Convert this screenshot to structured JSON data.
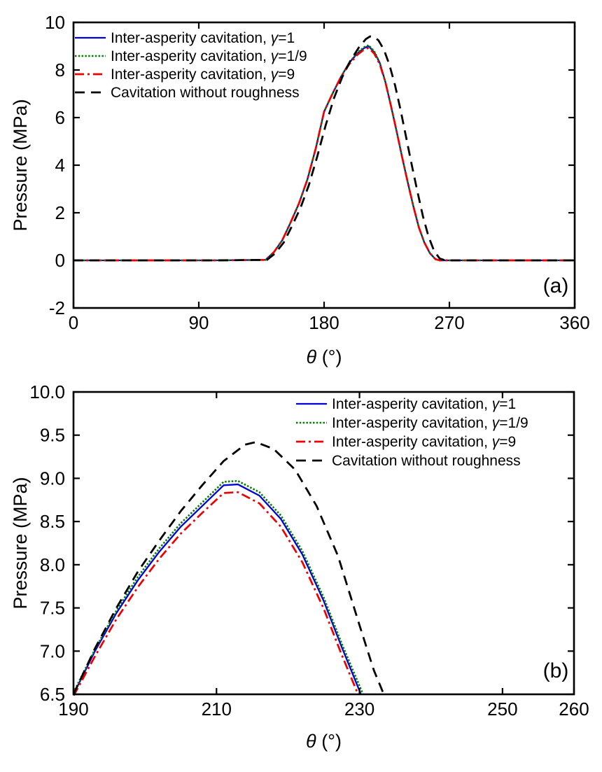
{
  "figure": {
    "background": "#ffffff",
    "description": "Two stacked line charts of hydrodynamic pressure versus bearing angle theta"
  },
  "chart_data": [
    {
      "id": "panel-a",
      "type": "line",
      "panel_label": "(a)",
      "xlabel": "θ (°)",
      "ylabel": "Pressure (MPa)",
      "xlim": [
        0,
        360
      ],
      "ylim": [
        -2,
        10
      ],
      "xticks": [
        0,
        90,
        180,
        270,
        360
      ],
      "xtick_labels": [
        "0",
        "90",
        "180",
        "270",
        "360"
      ],
      "yticks": [
        10,
        8,
        6,
        4,
        2,
        0,
        -2
      ],
      "ytick_labels": [
        "10",
        "8",
        "6",
        "4",
        "2",
        "0",
        "-2"
      ],
      "grid": false,
      "legend_position": "top-left",
      "series": [
        {
          "name": "Inter-asperity cavitation, γ=1",
          "color": "#0000dd",
          "style": "solid",
          "x": [
            0,
            100,
            138,
            144,
            150,
            156,
            162,
            168,
            174,
            180,
            186,
            192,
            198,
            204,
            209,
            212,
            216,
            220,
            224,
            228,
            232,
            236,
            240,
            244,
            248,
            252,
            256,
            260,
            263,
            280,
            360
          ],
          "y": [
            0,
            0,
            0.02,
            0.35,
            0.85,
            1.6,
            2.4,
            3.4,
            4.7,
            6.25,
            7.0,
            7.7,
            8.3,
            8.7,
            8.93,
            9.0,
            8.75,
            8.3,
            7.5,
            6.5,
            5.45,
            4.35,
            3.3,
            2.3,
            1.4,
            0.75,
            0.3,
            0.05,
            0,
            0,
            0
          ]
        },
        {
          "name": "Inter-asperity cavitation, γ=1/9",
          "color": "#007f00",
          "style": "dotted",
          "x": [
            0,
            100,
            138,
            144,
            150,
            156,
            162,
            168,
            174,
            180,
            186,
            192,
            198,
            204,
            209,
            212,
            216,
            220,
            224,
            228,
            232,
            236,
            240,
            244,
            248,
            252,
            256,
            260,
            263,
            280,
            360
          ],
          "y": [
            0,
            0,
            0.02,
            0.35,
            0.85,
            1.6,
            2.4,
            3.4,
            4.7,
            6.25,
            7.0,
            7.7,
            8.3,
            8.74,
            8.97,
            9.04,
            8.79,
            8.3,
            7.5,
            6.5,
            5.45,
            4.35,
            3.3,
            2.3,
            1.4,
            0.75,
            0.3,
            0.05,
            0,
            0,
            0
          ]
        },
        {
          "name": "Inter-asperity cavitation, γ=9",
          "color": "#ee0000",
          "style": "dashdot",
          "x": [
            0,
            100,
            138,
            144,
            150,
            156,
            162,
            168,
            174,
            180,
            186,
            192,
            198,
            204,
            209,
            212,
            216,
            220,
            224,
            228,
            232,
            236,
            240,
            244,
            248,
            252,
            256,
            260,
            263,
            280,
            360
          ],
          "y": [
            0,
            0,
            0.02,
            0.35,
            0.85,
            1.6,
            2.4,
            3.4,
            4.7,
            6.25,
            7.0,
            7.7,
            8.24,
            8.64,
            8.87,
            8.93,
            8.69,
            8.24,
            7.5,
            6.5,
            5.45,
            4.35,
            3.3,
            2.3,
            1.4,
            0.75,
            0.3,
            0.05,
            0,
            0,
            0
          ]
        },
        {
          "name": "Cavitation without roughness",
          "color": "#000000",
          "style": "dashed",
          "x": [
            0,
            100,
            139,
            145,
            151,
            157,
            163,
            169,
            175,
            181,
            187,
            193,
            199,
            205,
            210,
            213,
            216,
            219,
            223,
            227,
            231,
            235,
            239,
            243,
            247,
            251,
            255,
            259,
            263,
            267,
            280,
            360
          ],
          "y": [
            0,
            0,
            0.02,
            0.3,
            0.75,
            1.45,
            2.2,
            3.15,
            4.35,
            5.65,
            6.8,
            7.7,
            8.4,
            8.95,
            9.3,
            9.41,
            9.38,
            9.25,
            8.85,
            8.2,
            7.35,
            6.3,
            5.15,
            4.0,
            2.9,
            1.85,
            1.0,
            0.4,
            0.08,
            0,
            0,
            0
          ]
        }
      ]
    },
    {
      "id": "panel-b",
      "type": "line",
      "panel_label": "(b)",
      "xlabel": "θ (°)",
      "ylabel": "Pressure (MPa)",
      "xlim": [
        190,
        260
      ],
      "ylim": [
        6.5,
        10.0
      ],
      "xticks": [
        190,
        210,
        230,
        250,
        260
      ],
      "xtick_labels": [
        "190",
        "210",
        "230",
        "250",
        "260"
      ],
      "yticks": [
        10.0,
        9.5,
        9.0,
        8.5,
        8.0,
        7.5,
        7.0,
        6.5
      ],
      "ytick_labels": [
        "10.0",
        "9.5",
        "9.0",
        "8.5",
        "8.0",
        "7.5",
        "7.0",
        "6.5"
      ],
      "grid": false,
      "legend_position": "top-right",
      "series": [
        {
          "name": "Inter-asperity cavitation, γ=1",
          "color": "#0000dd",
          "style": "solid",
          "x": [
            190,
            193,
            196,
            199,
            202,
            205,
            208,
            211,
            213,
            216,
            219,
            222,
            225,
            227.5,
            230.2
          ],
          "y": [
            6.5,
            7.0,
            7.44,
            7.82,
            8.15,
            8.44,
            8.68,
            8.92,
            8.93,
            8.8,
            8.53,
            8.12,
            7.58,
            7.05,
            6.5
          ]
        },
        {
          "name": "Inter-asperity cavitation, γ=1/9",
          "color": "#007f00",
          "style": "dotted",
          "x": [
            190,
            193,
            196,
            199,
            202,
            205,
            208,
            211,
            213,
            216,
            219,
            222,
            225,
            227.5,
            230.5
          ],
          "y": [
            6.52,
            7.02,
            7.47,
            7.86,
            8.19,
            8.48,
            8.72,
            8.96,
            8.97,
            8.84,
            8.57,
            8.16,
            7.62,
            7.09,
            6.5
          ]
        },
        {
          "name": "Inter-asperity cavitation, γ=9",
          "color": "#ee0000",
          "style": "dashdot",
          "x": [
            190,
            193,
            196,
            199,
            202,
            205,
            208,
            211,
            213,
            216,
            219,
            222,
            225,
            227.5,
            229.8
          ],
          "y": [
            6.48,
            6.94,
            7.37,
            7.74,
            8.07,
            8.36,
            8.6,
            8.83,
            8.84,
            8.71,
            8.44,
            8.03,
            7.49,
            6.96,
            6.5
          ]
        },
        {
          "name": "Cavitation without roughness",
          "color": "#000000",
          "style": "dashed",
          "x": [
            190,
            193,
            196,
            199,
            202,
            205,
            208,
            211,
            214,
            215.5,
            218,
            221,
            224,
            227,
            230,
            232,
            233.4
          ],
          "y": [
            6.5,
            7.03,
            7.5,
            7.92,
            8.28,
            8.62,
            8.92,
            9.2,
            9.39,
            9.42,
            9.34,
            9.1,
            8.68,
            8.1,
            7.3,
            6.78,
            6.5
          ]
        }
      ]
    }
  ]
}
